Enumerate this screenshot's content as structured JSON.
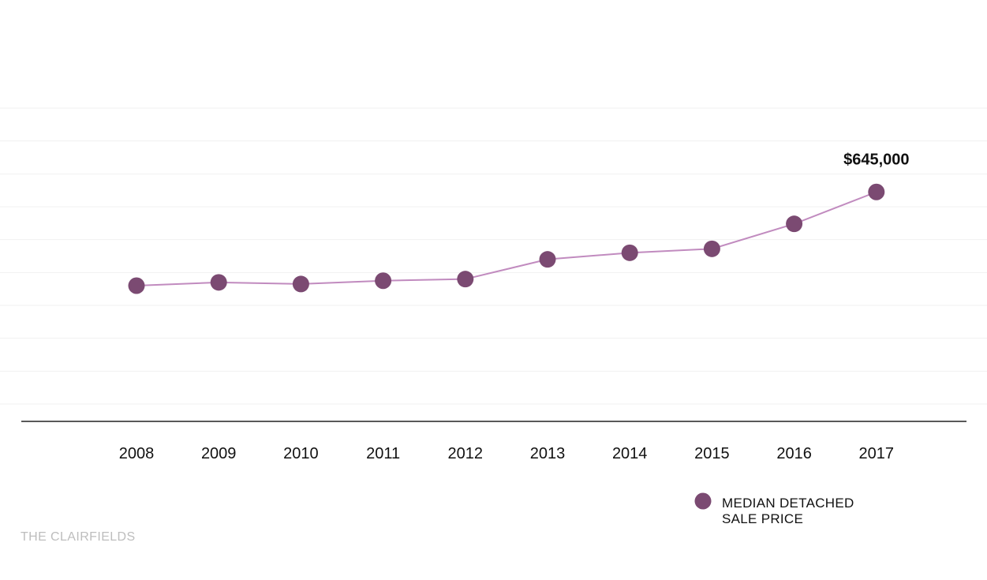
{
  "chart_data": {
    "type": "line",
    "title": "",
    "xlabel": "",
    "ylabel": "",
    "x": [
      "2008",
      "2009",
      "2010",
      "2011",
      "2012",
      "2013",
      "2014",
      "2015",
      "2016",
      "2017"
    ],
    "series": [
      {
        "name": "MEDIAN DETACHED SALE PRICE",
        "name_lines": [
          "MEDIAN DETACHED",
          "SALE PRICE"
        ],
        "values": [
          360000,
          370000,
          365000,
          375000,
          380000,
          440000,
          460000,
          472000,
          548000,
          645000
        ]
      }
    ],
    "ylim": [
      0,
      900000
    ],
    "grid": true,
    "legend": "bottom-right",
    "annotations": [
      {
        "x": "2017",
        "value": 645000,
        "label": "$645,000"
      }
    ],
    "colors": {
      "marker": "#7b4a72",
      "line": "#c18bbf",
      "axis": "#222222",
      "grid": "#f1f1f1"
    }
  },
  "watermark": "THE CLAIRFIELDS"
}
